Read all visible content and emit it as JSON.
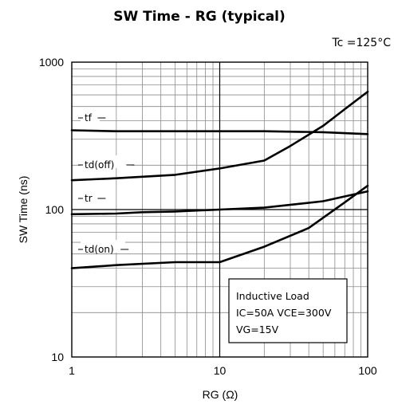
{
  "chart_data": {
    "type": "line",
    "title": "SW Time - RG (typical)",
    "condition": "Tc =125°C",
    "xlabel": "RG (Ω)",
    "ylabel": "SW Time (ns)",
    "x_scale": "log",
    "y_scale": "log",
    "xlim": [
      1,
      100
    ],
    "ylim": [
      10,
      1000
    ],
    "x_ticks": [
      "1",
      "10",
      "100"
    ],
    "y_ticks": [
      "10",
      "100",
      "1000"
    ],
    "grid": true,
    "series": [
      {
        "name": "tf",
        "x": [
          1,
          2,
          5,
          10,
          20,
          50,
          100
        ],
        "y": [
          345,
          340,
          340,
          340,
          340,
          335,
          325
        ]
      },
      {
        "name": "td(off)",
        "x": [
          1,
          2,
          5,
          10,
          20,
          30,
          50,
          70,
          100
        ],
        "y": [
          158,
          163,
          172,
          190,
          215,
          270,
          370,
          480,
          630
        ]
      },
      {
        "name": "tr",
        "x": [
          1,
          2,
          3,
          5,
          10,
          20,
          50,
          100
        ],
        "y": [
          93,
          94,
          96,
          97,
          100,
          103,
          114,
          133
        ]
      },
      {
        "name": "td(on)",
        "x": [
          1,
          2,
          5,
          10,
          20,
          40,
          70,
          100
        ],
        "y": [
          40,
          42,
          44,
          44,
          56,
          75,
          112,
          145
        ]
      }
    ],
    "annotation": [
      "Inductive Load",
      "IC=50A VCE=300V",
      "VG=15V"
    ]
  }
}
